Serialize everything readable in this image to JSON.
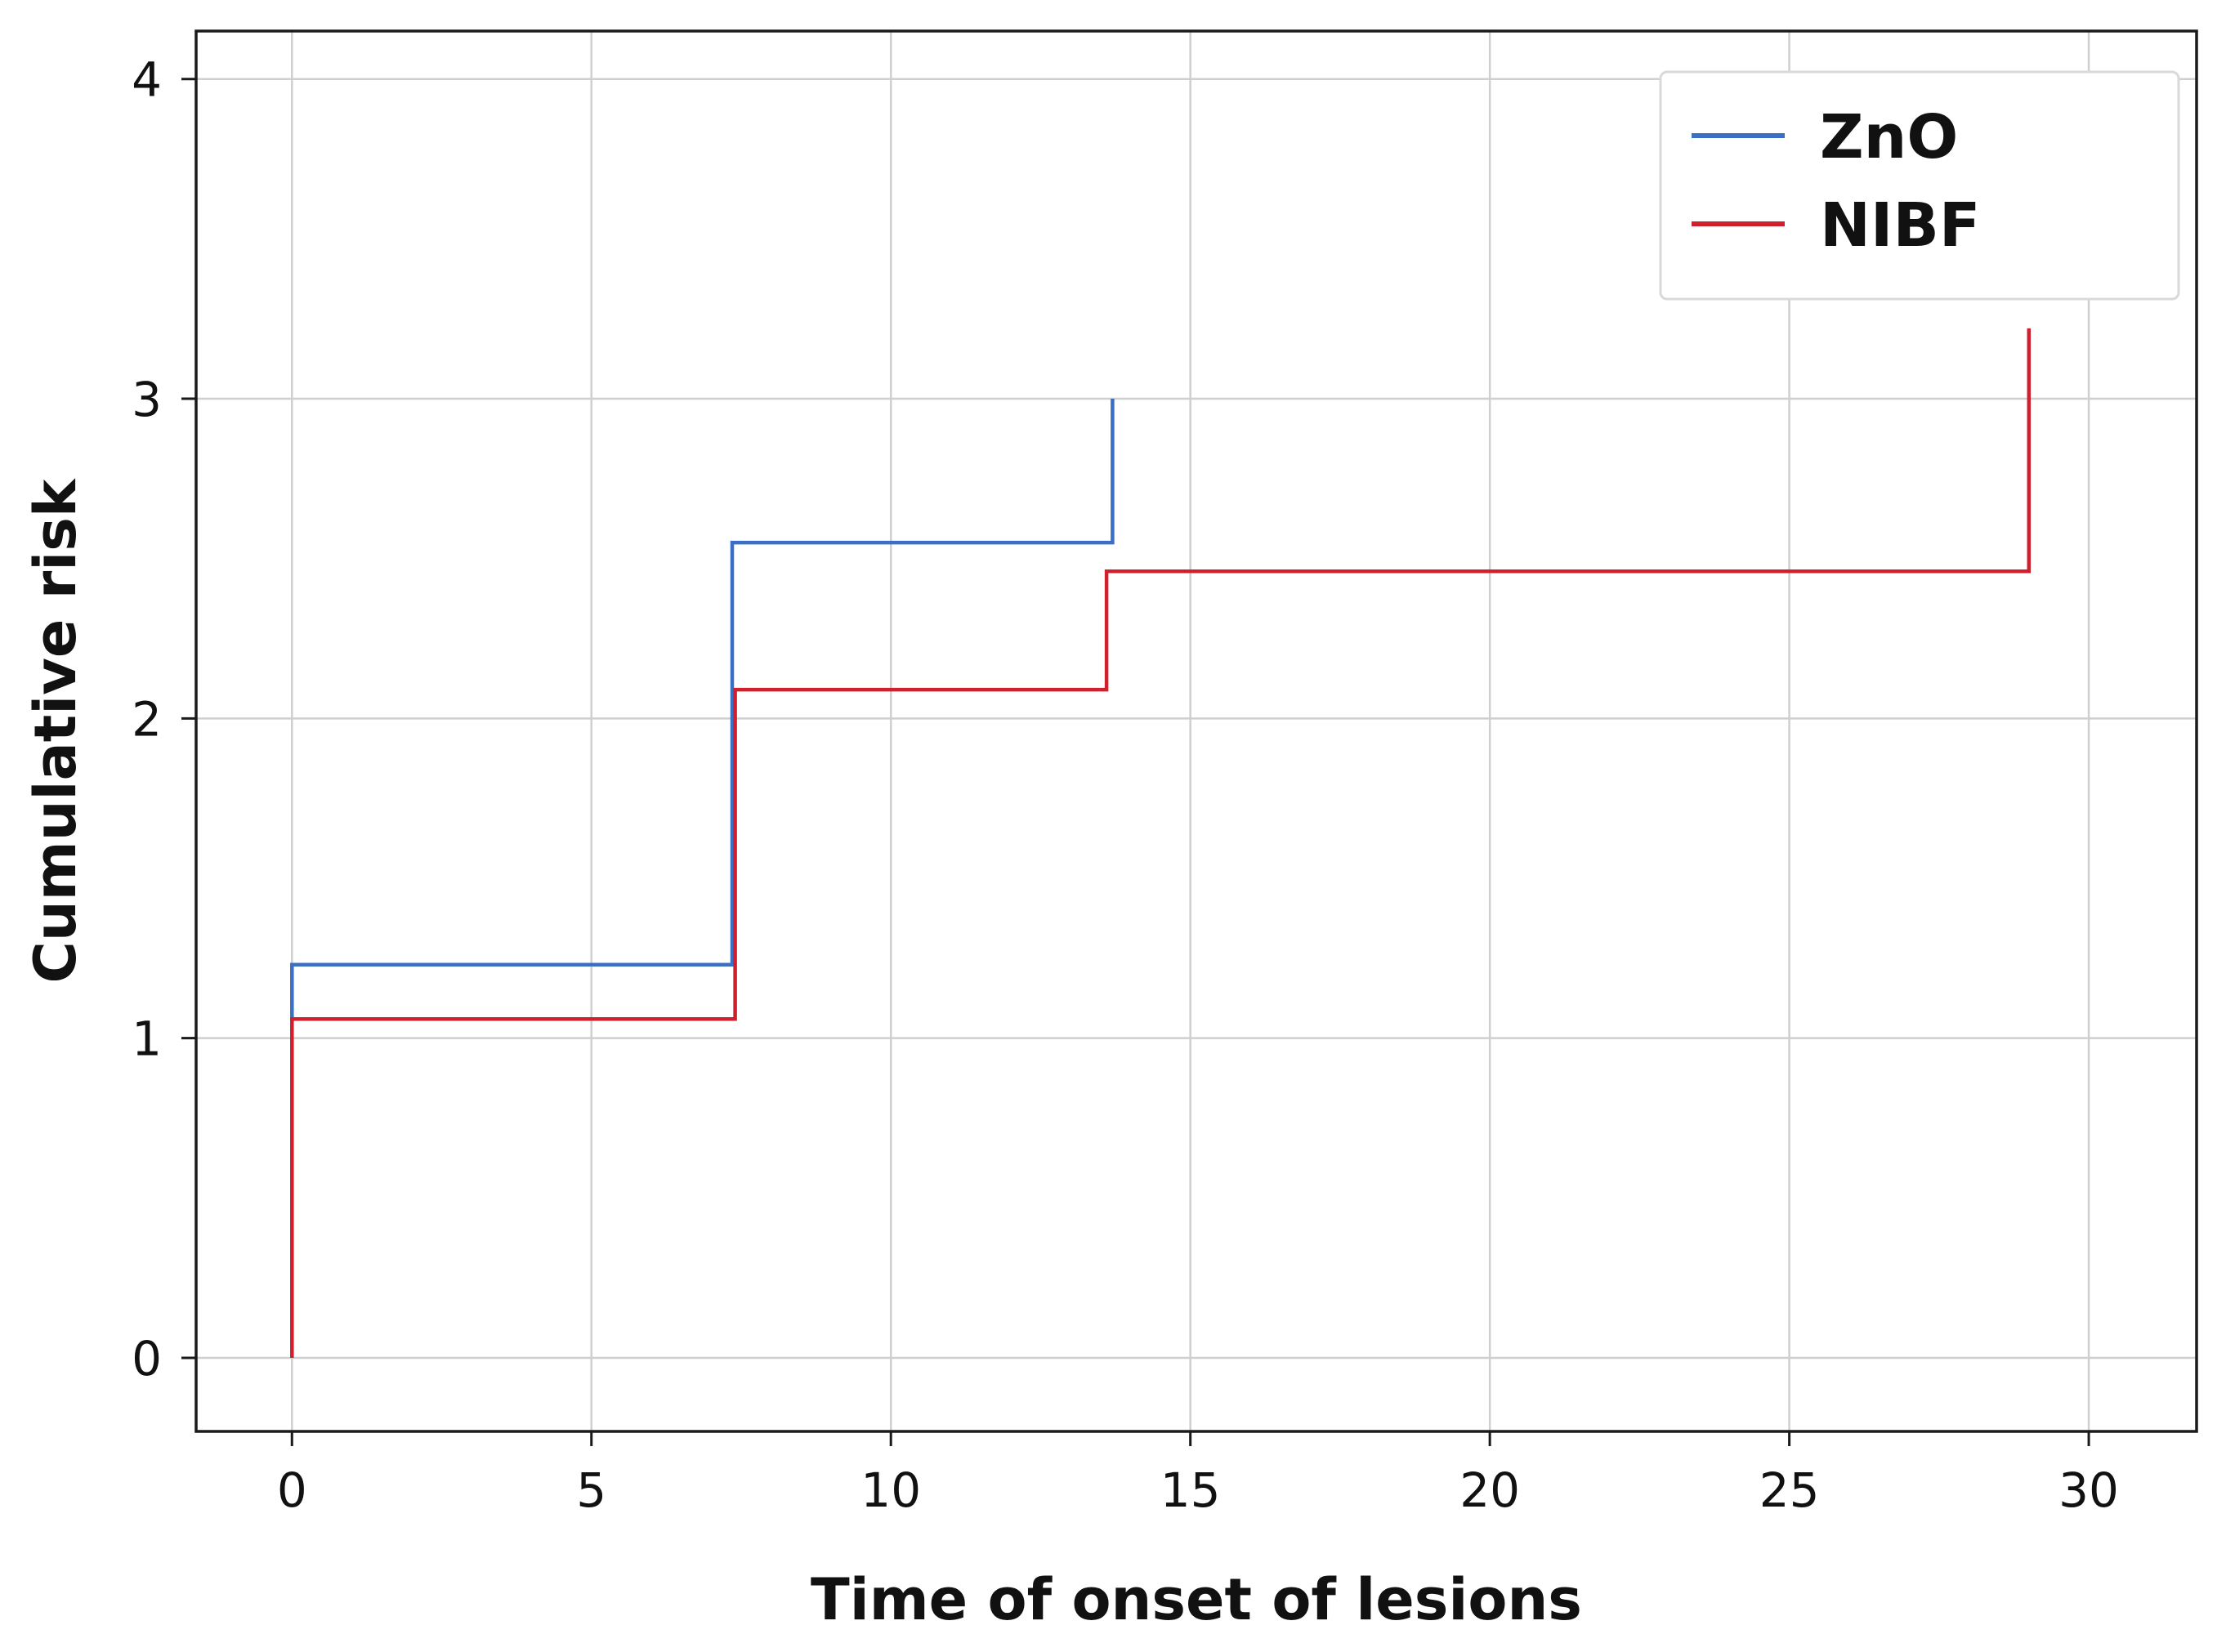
{
  "chart_data": {
    "type": "line",
    "step": true,
    "xlabel": "Time of onset of lesions",
    "ylabel": "Cumulative risk",
    "xlim": [
      -1.6,
      31.8
    ],
    "ylim": [
      -0.23,
      4.15
    ],
    "xticks": [
      0,
      5,
      10,
      15,
      20,
      25,
      30
    ],
    "yticks": [
      0,
      1,
      2,
      3,
      4
    ],
    "grid": true,
    "legend_position": "top-right",
    "series": [
      {
        "name": "ZnO",
        "color": "#3a6fc4",
        "x": [
          0,
          0,
          7.35,
          7.35,
          13.7,
          13.7
        ],
        "y": [
          1.06,
          1.23,
          1.23,
          2.55,
          2.55,
          3.0
        ]
      },
      {
        "name": "NIBF",
        "color": "#d0202e",
        "x": [
          0,
          0,
          7.4,
          7.4,
          13.6,
          13.6,
          29.0,
          29.0
        ],
        "y": [
          0,
          1.06,
          1.06,
          2.09,
          2.09,
          2.46,
          2.46,
          3.22
        ]
      }
    ]
  }
}
